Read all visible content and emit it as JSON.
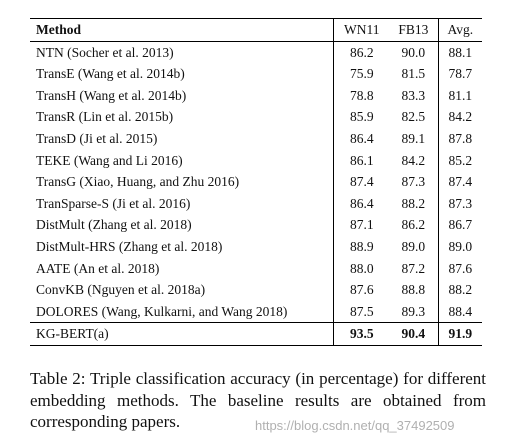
{
  "table": {
    "header": [
      "Method",
      "WN11",
      "FB13",
      "Avg."
    ],
    "rows": [
      [
        "NTN (Socher et al. 2013)",
        "86.2",
        "90.0",
        "88.1"
      ],
      [
        "TransE (Wang et al. 2014b)",
        "75.9",
        "81.5",
        "78.7"
      ],
      [
        "TransH (Wang et al. 2014b)",
        "78.8",
        "83.3",
        "81.1"
      ],
      [
        "TransR (Lin et al. 2015b)",
        "85.9",
        "82.5",
        "84.2"
      ],
      [
        "TransD (Ji et al. 2015)",
        "86.4",
        "89.1",
        "87.8"
      ],
      [
        "TEKE (Wang and Li 2016)",
        "86.1",
        "84.2",
        "85.2"
      ],
      [
        "TransG (Xiao, Huang, and Zhu 2016)",
        "87.4",
        "87.3",
        "87.4"
      ],
      [
        "TranSparse-S (Ji et al. 2016)",
        "86.4",
        "88.2",
        "87.3"
      ],
      [
        "DistMult (Zhang et al. 2018)",
        "87.1",
        "86.2",
        "86.7"
      ],
      [
        "DistMult-HRS (Zhang et al. 2018)",
        "88.9",
        "89.0",
        "89.0"
      ],
      [
        "AATE (An et al. 2018)",
        "88.0",
        "87.2",
        "87.6"
      ],
      [
        "ConvKB (Nguyen et al. 2018a)",
        "87.6",
        "88.8",
        "88.2"
      ],
      [
        "DOLORES (Wang, Kulkarni, and Wang 2018)",
        "87.5",
        "89.3",
        "88.4"
      ],
      [
        "KG-BERT(a)",
        "93.5",
        "90.4",
        "91.9"
      ]
    ]
  },
  "caption": "Table 2: Triple classification accuracy (in percentage) for different embedding methods. The baseline results are obtained from corresponding papers.",
  "watermark": "https://blog.csdn.net/qq_37492509"
}
